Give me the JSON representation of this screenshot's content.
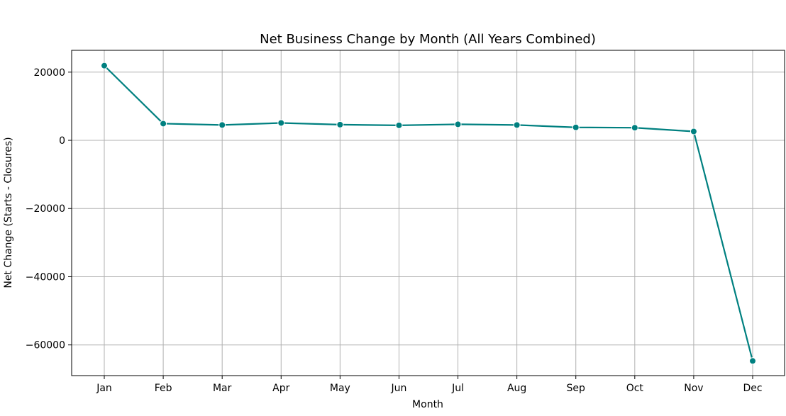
{
  "chart_data": {
    "type": "line",
    "title": "Net Business Change by Month (All Years Combined)",
    "xlabel": "Month",
    "ylabel": "Net Change (Starts - Closures)",
    "categories": [
      "Jan",
      "Feb",
      "Mar",
      "Apr",
      "May",
      "Jun",
      "Jul",
      "Aug",
      "Sep",
      "Oct",
      "Nov",
      "Dec"
    ],
    "series": [
      {
        "values": [
          21900,
          4900,
          4500,
          5100,
          4600,
          4400,
          4700,
          4500,
          3800,
          3700,
          2600,
          -64700
        ],
        "color": "#008080",
        "marker": "circle"
      }
    ],
    "ylim": [
      -69000,
      26400
    ],
    "yticks": [
      20000,
      0,
      -20000,
      -40000,
      -60000
    ],
    "ytick_labels": [
      "20000",
      "0",
      "−20000",
      "−40000",
      "−60000"
    ],
    "grid": true,
    "grid_color": "#b0b0b0",
    "axis_color": "#000000"
  }
}
